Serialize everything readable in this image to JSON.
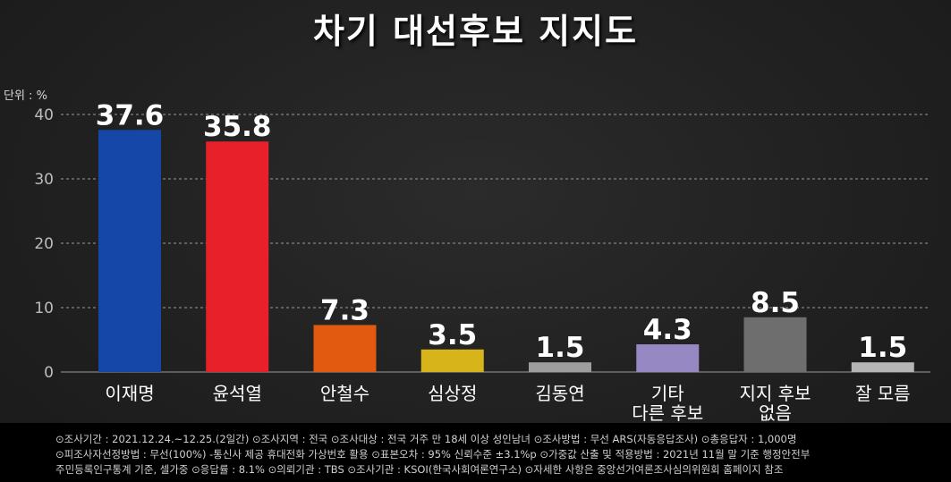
{
  "title": "차기 대선후보 지지도",
  "unit_label": "단위 : %",
  "colors": {
    "background": "#222222",
    "text": "#ffffff",
    "grid": "#9a9a9a",
    "axis_text": "#bdbdbd"
  },
  "chart_data": {
    "type": "bar",
    "title": "차기 대선후보 지지도",
    "ylabel": "단위 : %",
    "xlabel": "",
    "ylim": [
      0,
      40
    ],
    "yticks": [
      0,
      10,
      20,
      30,
      40
    ],
    "grid": true,
    "categories": [
      [
        "이재명"
      ],
      [
        "윤석열"
      ],
      [
        "안철수"
      ],
      [
        "심상정"
      ],
      [
        "김동연"
      ],
      [
        "기타",
        "다른 후보"
      ],
      [
        "지지 후보",
        "없음"
      ],
      [
        "잘 모름"
      ]
    ],
    "values": [
      37.6,
      35.8,
      7.3,
      3.5,
      1.5,
      4.3,
      8.5,
      1.5
    ],
    "value_labels": [
      "37.6",
      "35.8",
      "7.3",
      "3.5",
      "1.5",
      "4.3",
      "8.5",
      "1.5"
    ],
    "bar_colors": [
      "#1547a8",
      "#e8202a",
      "#e15a10",
      "#d6b41a",
      "#9e9e9e",
      "#9688c2",
      "#6e6e6e",
      "#b5b5b5"
    ]
  },
  "footer": {
    "lines": [
      "⊙조사기간 : 2021.12.24.~12.25.(2일간)  ⊙조사지역 : 전국  ⊙조사대상 : 전국 거주 만 18세 이상 성인남녀  ⊙조사방법 : 무선 ARS(자동응답조사)  ⊙총응답자 : 1,000명",
      "⊙피조사자선정방법 : 무선(100%) -통신사 제공 휴대전화 가상번호 활용  ⊙표본오차 : 95% 신뢰수준 ±3.1%p  ⊙가중값 산출 및 적용방법 : 2021년 11월 말 기준 행정안전부",
      "주민등록인구통계 기준, 셀가중  ⊙응답률 : 8.1%  ⊙의뢰기관 : TBS  ⊙조사기관 : KSOI(한국사회여론연구소)  ⊙자세한 사항은 중앙선거여론조사심의위원회 홈페이지 참조"
    ]
  }
}
